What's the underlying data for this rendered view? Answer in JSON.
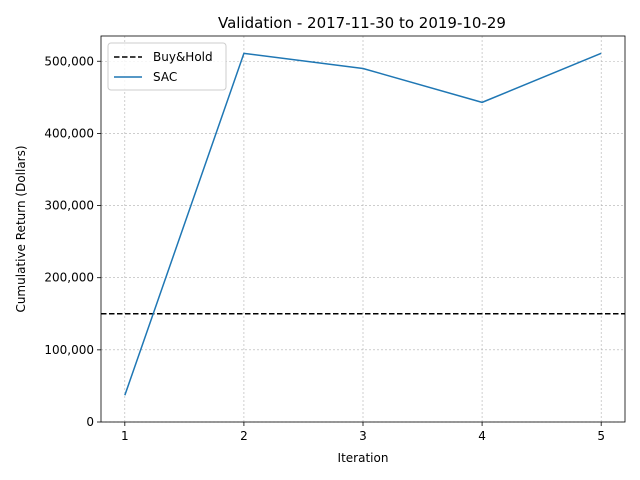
{
  "chart_data": {
    "type": "line",
    "title": "Validation - 2017-11-30 to 2019-10-29",
    "xlabel": "Iteration",
    "ylabel": "Cumulative Return (Dollars)",
    "x": [
      1,
      2,
      3,
      4,
      5
    ],
    "xlim": [
      0.8,
      5.2
    ],
    "ylim": [
      0,
      535000
    ],
    "xticks": [
      1,
      2,
      3,
      4,
      5
    ],
    "yticks": [
      0,
      100000,
      200000,
      300000,
      400000,
      500000
    ],
    "ytick_labels": [
      "0",
      "100,000",
      "200,000",
      "300,000",
      "400,000",
      "500,000"
    ],
    "grid": true,
    "legend_position": "upper-left",
    "series": [
      {
        "name": "Buy&Hold",
        "kind": "hline",
        "value": 150000,
        "color": "#000000",
        "style": "dashed"
      },
      {
        "name": "SAC",
        "kind": "line",
        "values": [
          37000,
          511000,
          490000,
          443000,
          511000
        ],
        "color": "#1f77b4",
        "style": "solid"
      }
    ]
  }
}
